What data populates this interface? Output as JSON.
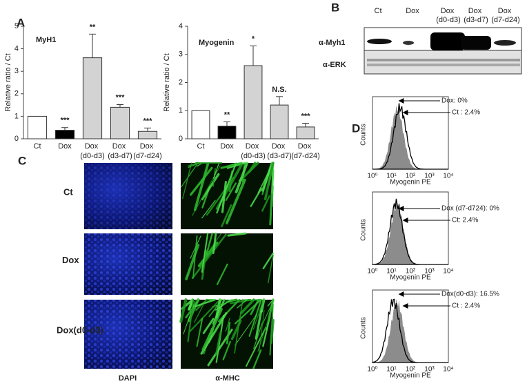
{
  "chart_data": [
    {
      "type": "bar",
      "panel": "A",
      "title": "MyH1",
      "ylabel": "Relative ratio / Ct",
      "categories": [
        "Ct",
        "Dox",
        "Dox (d0-d3)",
        "Dox (d3-d7)",
        "Dox (d7-d24)"
      ],
      "values": [
        1,
        0.38,
        3.6,
        1.4,
        0.33
      ],
      "errors": [
        null,
        0.12,
        1.05,
        0.12,
        0.15
      ],
      "annotations": [
        null,
        "***",
        "**",
        "***",
        "***"
      ],
      "colors": [
        "#ffffff",
        "#000000",
        "#d3d3d3",
        "#d3d3d3",
        "#d3d3d3"
      ],
      "ylim": [
        0,
        5
      ],
      "yticks": [
        0,
        1,
        2,
        3,
        4,
        5
      ]
    },
    {
      "type": "bar",
      "title": "Myogenin",
      "ylabel": "Relative ratio / Ct",
      "categories": [
        "Ct",
        "Dox",
        "Dox (d0-d3)",
        "Dox (d3-d7)",
        "Dox (d7-d24)"
      ],
      "values": [
        1,
        0.45,
        2.6,
        1.2,
        0.42
      ],
      "errors": [
        null,
        0.15,
        0.7,
        0.3,
        0.13
      ],
      "annotations": [
        null,
        "**",
        "*",
        "N.S.",
        "***"
      ],
      "colors": [
        "#ffffff",
        "#000000",
        "#d3d3d3",
        "#d3d3d3",
        "#d3d3d3"
      ],
      "ylim": [
        0,
        4
      ],
      "yticks": [
        0,
        1,
        2,
        3,
        4
      ]
    }
  ],
  "blot": {
    "panel": "B",
    "lanes": [
      "Ct",
      "Dox",
      "Dox (d0-d3)",
      "Dox (d3-d7)",
      "Dox (d7-d24)"
    ],
    "rows": [
      "α-Myh1",
      "α-ERK"
    ]
  },
  "microscopy": {
    "panel": "C",
    "rows": [
      "Ct",
      "Dox",
      "Dox(d0-d3)"
    ],
    "columns": [
      "DAPI",
      "α-MHC"
    ]
  },
  "flow": {
    "panel": "D",
    "ylabel": "Counts",
    "xlabel": "Myogenin PE",
    "xtick_labels": [
      "10⁰",
      "10¹",
      "10²",
      "10³",
      "10⁴"
    ],
    "panels": [
      {
        "annotations": [
          "Dox: 0%",
          "Ct : 2.4%"
        ]
      },
      {
        "annotations": [
          "Dox (d7-d724): 0%",
          "Ct: 2.4%"
        ]
      },
      {
        "annotations": [
          "Dox(d0-d3): 16.5%",
          "Ct : 2.4%"
        ]
      }
    ]
  }
}
